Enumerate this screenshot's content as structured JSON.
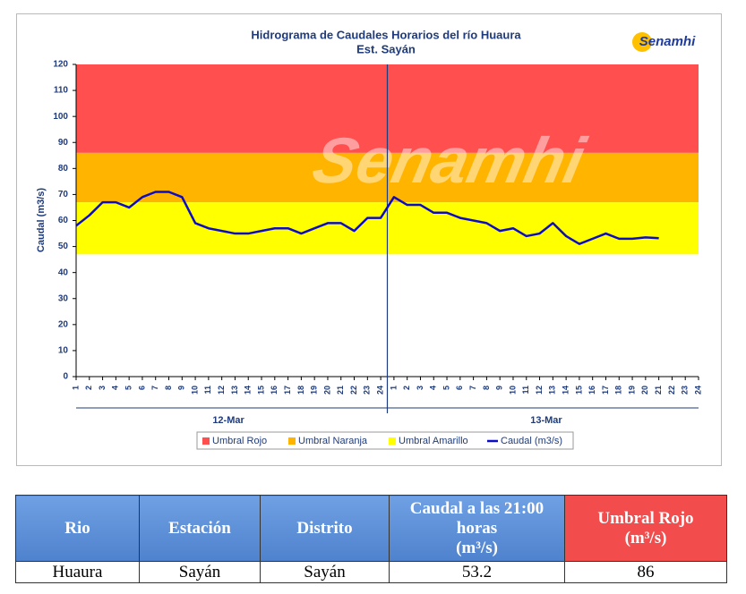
{
  "chart_data": {
    "type": "line",
    "title": "Hidrograma de Caudales Horarios del río Huaura",
    "subtitle": "Est. Sayán",
    "logo": "Senamhi",
    "y_label": "Caudal  (m3/s)",
    "ylim": [
      0,
      120
    ],
    "yticks": [
      0,
      10,
      20,
      30,
      40,
      50,
      60,
      70,
      80,
      90,
      100,
      110,
      120
    ],
    "categories": [
      "1",
      "2",
      "3",
      "4",
      "5",
      "6",
      "7",
      "8",
      "9",
      "10",
      "11",
      "12",
      "13",
      "14",
      "15",
      "16",
      "17",
      "18",
      "19",
      "20",
      "21",
      "22",
      "23",
      "24",
      "1",
      "2",
      "3",
      "4",
      "5",
      "6",
      "7",
      "8",
      "9",
      "10",
      "11",
      "12",
      "13",
      "14",
      "15",
      "16",
      "17",
      "18",
      "19",
      "20",
      "21",
      "22",
      "23",
      "24"
    ],
    "groups": [
      "12-Mar",
      "13-Mar"
    ],
    "thresholds": [
      {
        "name": "Umbral Rojo",
        "color": "#ff4f4f",
        "value": 86
      },
      {
        "name": "Umbral Naranja",
        "color": "#ffb400",
        "value": 67
      },
      {
        "name": "Umbral Amarillo",
        "color": "#ffff00",
        "value": 47
      }
    ],
    "series": [
      {
        "name": "Caudal (m3/s)",
        "color": "#0c0cc8",
        "values": [
          58,
          62,
          67,
          67,
          65,
          69,
          71,
          71,
          69,
          59,
          57,
          56,
          55,
          55,
          56,
          57,
          57,
          55,
          57,
          59,
          59,
          56,
          61,
          61,
          69,
          66,
          66,
          63,
          63,
          61,
          60,
          59,
          56,
          57,
          54,
          55,
          59,
          54,
          51,
          53,
          55,
          53,
          53,
          53.5,
          53.2,
          null,
          null,
          null
        ]
      }
    ]
  },
  "table": {
    "headers": [
      "Rio",
      "Estación",
      "Distrito",
      "Caudal a las 21:00 horas",
      "Umbral Rojo"
    ],
    "units": [
      "(m³/s)",
      "(m³/s)"
    ],
    "rows": [
      [
        "Huaura",
        "Sayán",
        "Sayán",
        "53.2",
        "86"
      ]
    ]
  }
}
